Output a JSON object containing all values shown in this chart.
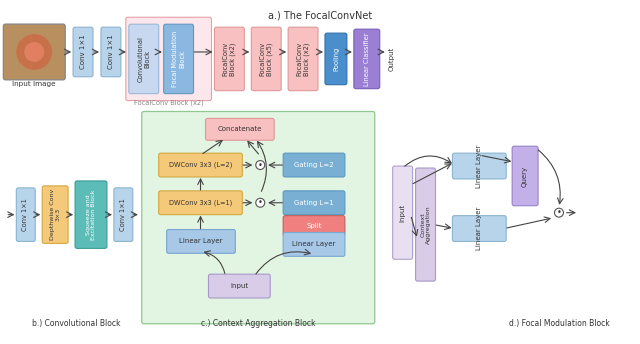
{
  "title_a": "a.) The FocalConvNet",
  "title_b": "b.) Convolutional Block",
  "title_c": "c.) Context Aggregation Block",
  "title_d": "d.) Focal Modulation Block",
  "col_light_blue": "#b8d4ea",
  "col_med_blue": "#7aafd4",
  "col_dark_blue": "#4a90c4",
  "col_purple": "#9b7fd4",
  "col_purple_light": "#c4b0e8",
  "col_orange": "#f5c97a",
  "col_teal": "#5bbcb8",
  "col_pink_bg": "#fce8ec",
  "col_green_bg": "#e2f4e2",
  "col_pink_box": "#f8c0c0",
  "col_salmon": "#f08080",
  "col_blue_box": "#a8c8e8",
  "col_lavender": "#d8cce8",
  "col_light_lavender": "#e8e0f0",
  "col_white": "#ffffff",
  "col_gray": "#888888",
  "col_dark": "#333333"
}
